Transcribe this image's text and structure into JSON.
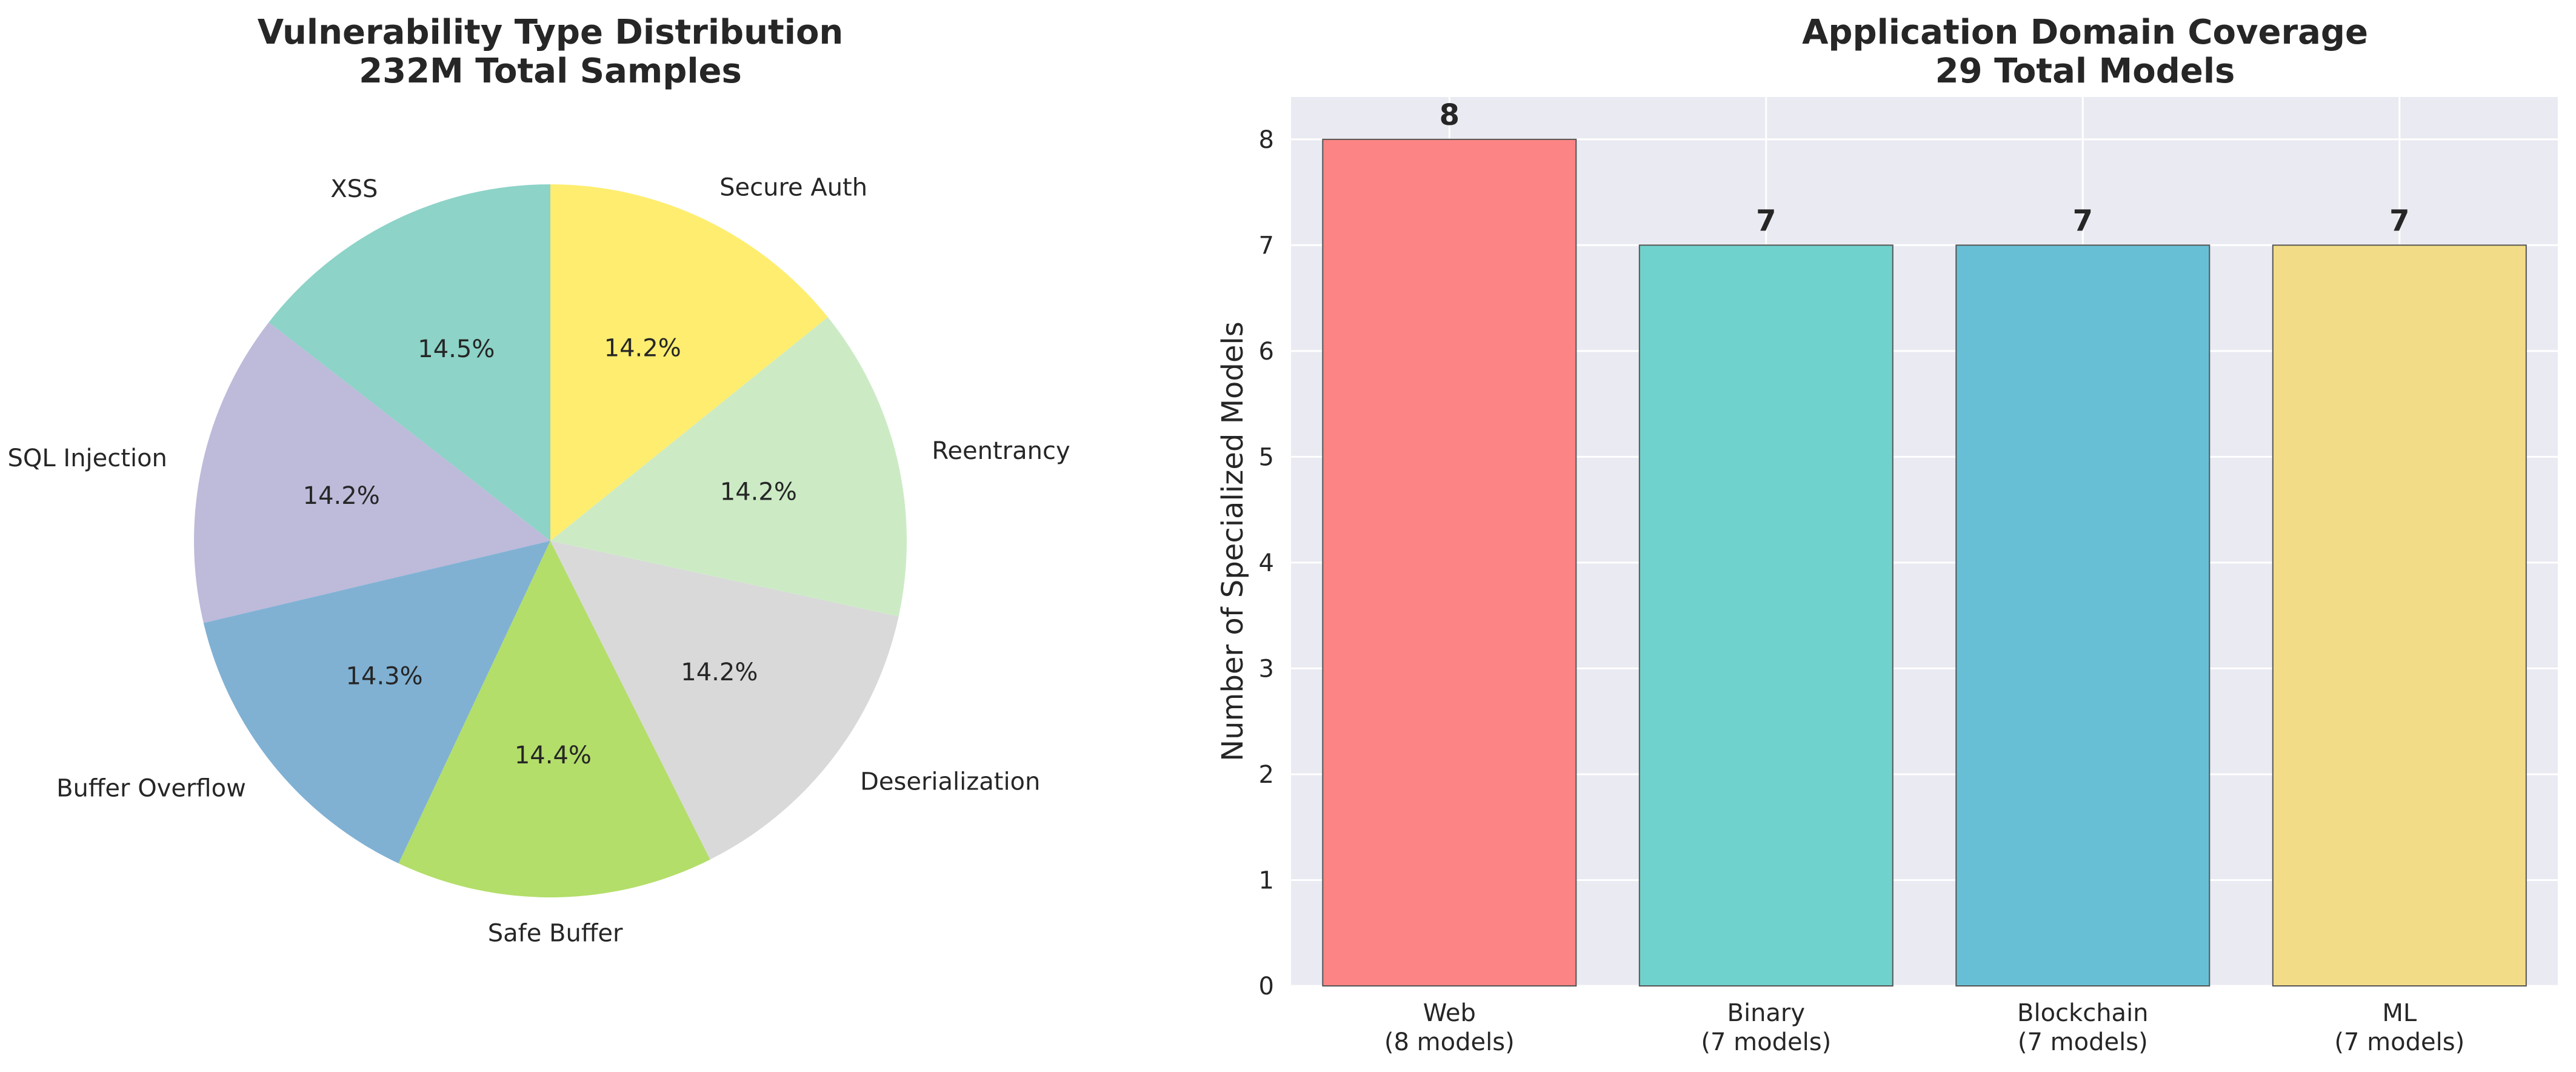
{
  "chart_data": [
    {
      "type": "pie",
      "title": "Vulnerability Type Distribution",
      "subtitle": "232M Total Samples",
      "start_angle": 90,
      "direction": "counterclockwise",
      "slices": [
        {
          "label": "XSS",
          "value": 14.5,
          "pct_label": "14.5%",
          "color": "#8dd3c7"
        },
        {
          "label": "SQL Injection",
          "value": 14.2,
          "pct_label": "14.2%",
          "color": "#bebada"
        },
        {
          "label": "Buffer Overflow",
          "value": 14.3,
          "pct_label": "14.3%",
          "color": "#80b1d3"
        },
        {
          "label": "Safe Buffer",
          "value": 14.4,
          "pct_label": "14.4%",
          "color": "#b3de69"
        },
        {
          "label": "Deserialization",
          "value": 14.2,
          "pct_label": "14.2%",
          "color": "#d9d9d9"
        },
        {
          "label": "Reentrancy",
          "value": 14.2,
          "pct_label": "14.2%",
          "color": "#ccebc5"
        },
        {
          "label": "Secure Auth",
          "value": 14.2,
          "pct_label": "14.2%",
          "color": "#ffed6f"
        }
      ]
    },
    {
      "type": "bar",
      "title": "Application Domain Coverage",
      "subtitle": "29 Total Models",
      "ylabel": "Number of Specialized Models",
      "xlabel": "",
      "ylim": [
        0,
        8.4
      ],
      "yticks": [
        0,
        1,
        2,
        3,
        4,
        5,
        6,
        7,
        8
      ],
      "grid": true,
      "background": "#eaeaf2",
      "categories": [
        {
          "line1": "Web",
          "line2": "(8 models)"
        },
        {
          "line1": "Binary",
          "line2": "(7 models)"
        },
        {
          "line1": "Blockchain",
          "line2": "(7 models)"
        },
        {
          "line1": "ML",
          "line2": "(7 models)"
        }
      ],
      "values": [
        8,
        7,
        7,
        7
      ],
      "value_labels": [
        "8",
        "7",
        "7",
        "7"
      ],
      "colors": [
        "#fc8484",
        "#70d2cd",
        "#67bfd5",
        "#f2dc87"
      ]
    }
  ]
}
